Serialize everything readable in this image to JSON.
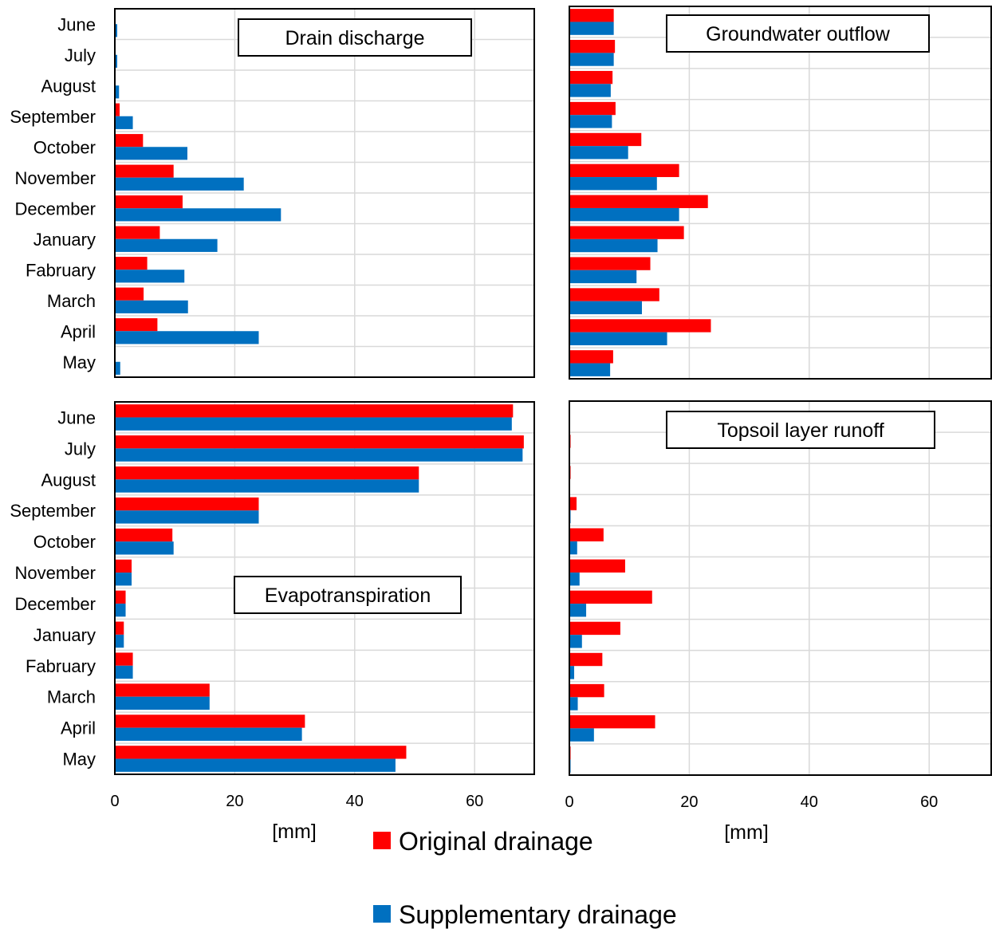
{
  "chart_data": [
    {
      "type": "bar",
      "orientation": "horizontal",
      "title": "Drain discharge",
      "categories": [
        "June",
        "July",
        "August",
        "September",
        "October",
        "November",
        "December",
        "January",
        "Fabruary",
        "March",
        "April",
        "May"
      ],
      "series": [
        {
          "name": "Original drainage",
          "values": [
            0,
            0,
            0,
            0.8,
            4.7,
            9.8,
            11.3,
            7.5,
            5.4,
            4.8,
            7.1,
            0
          ]
        },
        {
          "name": "Supplementary drainage",
          "values": [
            0.4,
            0.4,
            0.7,
            3.0,
            12.1,
            21.5,
            27.7,
            17.1,
            11.6,
            12.2,
            24.0,
            0.9
          ]
        }
      ],
      "xlim": [
        0,
        70
      ],
      "xticks": [
        0,
        20,
        40,
        60
      ],
      "grid": true
    },
    {
      "type": "bar",
      "orientation": "horizontal",
      "title": "Groundwater outflow",
      "categories": [
        "June",
        "July",
        "August",
        "September",
        "October",
        "November",
        "December",
        "January",
        "Fabruary",
        "March",
        "April",
        "May"
      ],
      "series": [
        {
          "name": "Original drainage",
          "values": [
            7.4,
            7.6,
            7.2,
            7.7,
            12.0,
            18.3,
            23.1,
            19.1,
            13.5,
            15.0,
            23.6,
            7.3
          ]
        },
        {
          "name": "Supplementary drainage",
          "values": [
            7.4,
            7.4,
            6.9,
            7.1,
            9.8,
            14.6,
            18.3,
            14.7,
            11.2,
            12.1,
            16.3,
            6.8
          ]
        }
      ],
      "xlim": [
        0,
        70
      ],
      "xticks": [
        0,
        20,
        40,
        60
      ],
      "grid": true
    },
    {
      "type": "bar",
      "orientation": "horizontal",
      "title": "Evapotranspiration",
      "categories": [
        "June",
        "July",
        "August",
        "September",
        "October",
        "November",
        "December",
        "January",
        "Fabruary",
        "March",
        "April",
        "May"
      ],
      "series": [
        {
          "name": "Original drainage",
          "values": [
            66.4,
            68.2,
            50.7,
            24.0,
            9.6,
            2.8,
            1.8,
            1.5,
            3.0,
            15.8,
            31.7,
            48.6
          ]
        },
        {
          "name": "Supplementary drainage",
          "values": [
            66.2,
            68.0,
            50.7,
            24.0,
            9.8,
            2.8,
            1.8,
            1.5,
            3.0,
            15.8,
            31.2,
            46.8
          ]
        }
      ],
      "xlim": [
        0,
        70
      ],
      "xticks": [
        0,
        20,
        40,
        60
      ],
      "xlabel": "[mm]",
      "grid": true
    },
    {
      "type": "bar",
      "orientation": "horizontal",
      "title": "Topsoil layer runoff",
      "categories": [
        "June",
        "July",
        "August",
        "September",
        "October",
        "November",
        "December",
        "January",
        "Fabruary",
        "March",
        "April",
        "May"
      ],
      "series": [
        {
          "name": "Original drainage",
          "values": [
            0.1,
            0.2,
            0.2,
            1.2,
            5.7,
            9.3,
            13.8,
            8.5,
            5.5,
            5.8,
            14.3,
            0.2
          ]
        },
        {
          "name": "Supplementary drainage",
          "values": [
            0.1,
            0.1,
            0.1,
            0.2,
            1.3,
            1.7,
            2.8,
            2.1,
            0.8,
            1.4,
            4.1,
            0.2
          ]
        }
      ],
      "xlim": [
        0,
        70
      ],
      "xticks": [
        0,
        20,
        40,
        60
      ],
      "xlabel": "[mm]",
      "grid": true
    }
  ],
  "legend": {
    "placement": "bottom-center",
    "items": [
      {
        "label": "Original drainage",
        "color": "#ff0000"
      },
      {
        "label": "Supplementary drainage",
        "color": "#0070c0"
      }
    ]
  },
  "colors": {
    "original": "#ff0000",
    "supplementary": "#0070c0"
  }
}
